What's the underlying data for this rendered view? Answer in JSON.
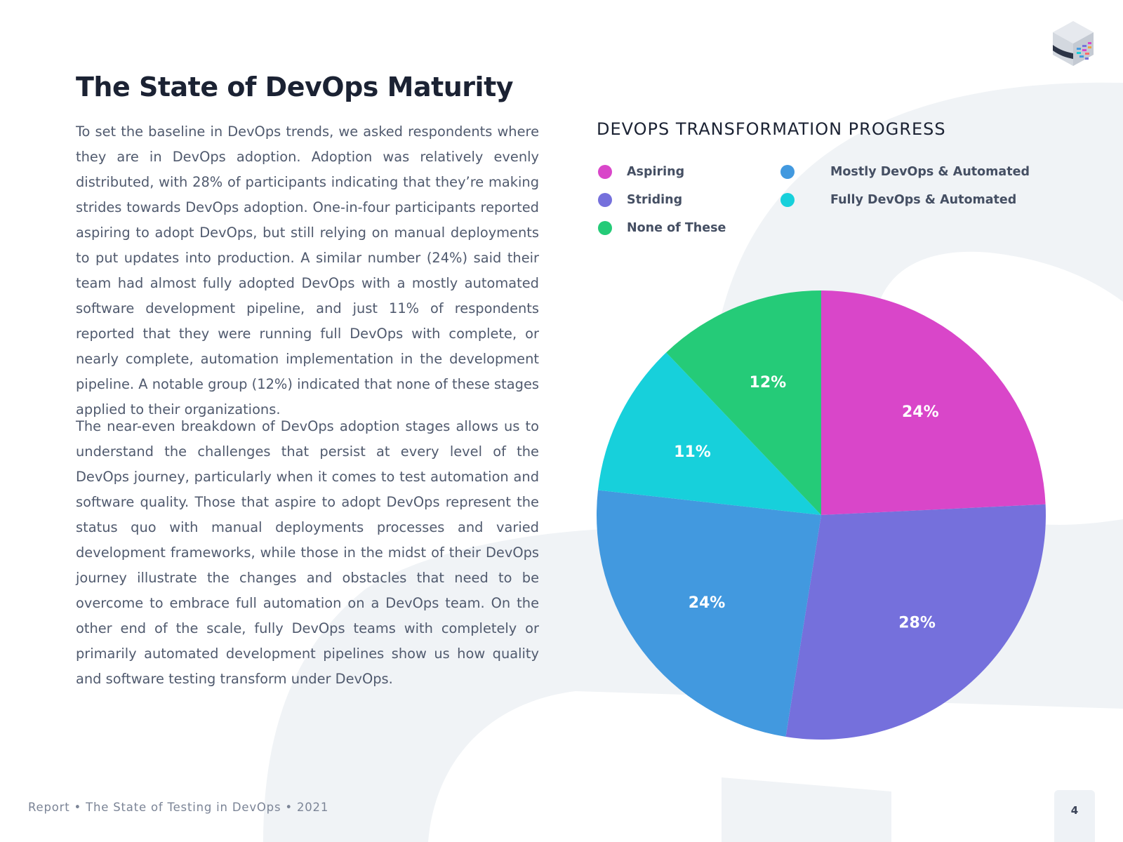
{
  "page": {
    "title": "The State of DevOps Maturity",
    "paragraphs": [
      "To set the baseline in DevOps trends, we asked respondents where they are in DevOps adoption. Adoption was relatively evenly distributed, with 28% of participants indicating that they’re making strides towards DevOps adoption. One-in-four participants reported aspiring to adopt DevOps, but still relying on manual deployments to put updates into production. A similar number (24%) said their team had almost fully adopted DevOps with a mostly automated software development pipeline, and just 11% of respondents reported that they were running full DevOps with complete, or nearly complete, automation implementation in the development pipeline. A notable group (12%) indicated that none of these stages applied to their organizations.",
      "The near-even breakdown of DevOps adoption stages allows us to understand the challenges that persist at every level of the DevOps journey, particularly when it comes to test automation and software quality. Those that aspire to adopt DevOps represent the status quo with manual deployments processes and varied development frameworks, while those in the midst of their DevOps journey illustrate the changes and obstacles that need to be overcome to embrace full automation on a DevOps team. On the other end of the scale, fully DevOps teams with completely or primarily automated development pipelines show us how quality and software testing transform under DevOps."
    ]
  },
  "footer": {
    "text": "Report • The State of Testing in DevOps • 2021",
    "page_number": "4"
  },
  "logo": {
    "icon": "brick-cube-logo-icon"
  },
  "colors": {
    "background_shape": "#f0f3f6",
    "title": "#1b2233",
    "slice_label": "#ffffff"
  },
  "chart_data": {
    "type": "pie",
    "title": "DEVOPS TRANSFORMATION PROGRESS",
    "legend_position": "top",
    "start_angle_deg": 0,
    "direction": "clockwise",
    "slices": [
      {
        "name": "Aspiring",
        "value": 24,
        "label": "24%",
        "color": "#d946c9"
      },
      {
        "name": "Striding",
        "value": 28,
        "label": "28%",
        "color": "#7570dc"
      },
      {
        "name": "Mostly DevOps & Automated",
        "value": 24,
        "label": "24%",
        "color": "#4299df"
      },
      {
        "name": "Fully DevOps & Automated",
        "value": 11,
        "label": "11%",
        "color": "#17d0db"
      },
      {
        "name": "None of These",
        "value": 12,
        "label": "12%",
        "color": "#25cb78"
      }
    ],
    "legend": [
      {
        "name": "Aspiring",
        "color": "#d946c9"
      },
      {
        "name": "Mostly DevOps & Automated",
        "color": "#4299df"
      },
      {
        "name": "Striding",
        "color": "#7570dc"
      },
      {
        "name": "Fully DevOps & Automated",
        "color": "#17d0db"
      },
      {
        "name": "None of These",
        "color": "#25cb78"
      }
    ]
  }
}
